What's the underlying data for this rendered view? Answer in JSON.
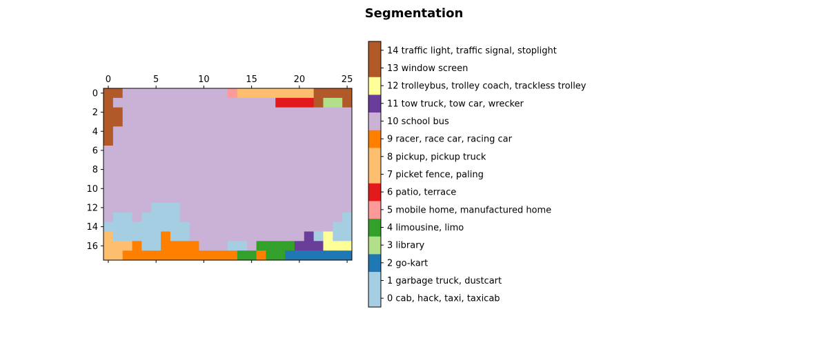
{
  "chart_data": {
    "type": "heatmap",
    "title": "Segmentation",
    "xlabel": "",
    "ylabel": "",
    "x_ticks": [
      0,
      5,
      10,
      15,
      20,
      25
    ],
    "y_ticks": [
      0,
      2,
      4,
      6,
      8,
      10,
      12,
      14,
      16
    ],
    "xlim": [
      -0.5,
      25.5
    ],
    "ylim": [
      17.5,
      -0.5
    ],
    "x_tick_position": "top",
    "grid": false,
    "legend_position": "right",
    "colorbar": {
      "ticks": [
        0,
        1,
        2,
        3,
        4,
        5,
        6,
        7,
        8,
        9,
        10,
        11,
        12,
        13,
        14
      ],
      "labels": [
        "0 cab, hack, taxi, taxicab",
        "1 garbage truck, dustcart",
        "2 go-kart",
        "3 library",
        "4 limousine, limo",
        "5 mobile home, manufactured home",
        "6 patio, terrace",
        "7 picket fence, paling",
        "8 pickup, pickup truck",
        "9 racer, race car, racing car",
        "10 school bus",
        "11 tow truck, tow car, wrecker",
        "12 trolleybus, trolley coach, trackless trolley",
        "13 window screen",
        "14 traffic light, traffic signal, stoplight"
      ],
      "colors": [
        "#a6cee3",
        "#a6cee3",
        "#1f78b4",
        "#b2df8a",
        "#33a02c",
        "#fb9a99",
        "#e31a1c",
        "#fdbf6f",
        "#fdbf6f",
        "#ff7f00",
        "#cab2d6",
        "#6a3d9a",
        "#ffff99",
        "#b15928",
        "#b15928"
      ]
    },
    "grid_values": [
      [
        13,
        13,
        10,
        10,
        10,
        10,
        10,
        10,
        10,
        10,
        10,
        10,
        10,
        5,
        7,
        7,
        7,
        7,
        7,
        7,
        7,
        7,
        13,
        13,
        13,
        13
      ],
      [
        13,
        10,
        10,
        10,
        10,
        10,
        10,
        10,
        10,
        10,
        10,
        10,
        10,
        10,
        10,
        10,
        10,
        10,
        6,
        6,
        6,
        6,
        13,
        3,
        3,
        13
      ],
      [
        13,
        13,
        10,
        10,
        10,
        10,
        10,
        10,
        10,
        10,
        10,
        10,
        10,
        10,
        10,
        10,
        10,
        10,
        10,
        10,
        10,
        10,
        10,
        10,
        10,
        10
      ],
      [
        13,
        13,
        10,
        10,
        10,
        10,
        10,
        10,
        10,
        10,
        10,
        10,
        10,
        10,
        10,
        10,
        10,
        10,
        10,
        10,
        10,
        10,
        10,
        10,
        10,
        10
      ],
      [
        13,
        10,
        10,
        10,
        10,
        10,
        10,
        10,
        10,
        10,
        10,
        10,
        10,
        10,
        10,
        10,
        10,
        10,
        10,
        10,
        10,
        10,
        10,
        10,
        10,
        10
      ],
      [
        13,
        10,
        10,
        10,
        10,
        10,
        10,
        10,
        10,
        10,
        10,
        10,
        10,
        10,
        10,
        10,
        10,
        10,
        10,
        10,
        10,
        10,
        10,
        10,
        10,
        10
      ],
      [
        10,
        10,
        10,
        10,
        10,
        10,
        10,
        10,
        10,
        10,
        10,
        10,
        10,
        10,
        10,
        10,
        10,
        10,
        10,
        10,
        10,
        10,
        10,
        10,
        10,
        10
      ],
      [
        10,
        10,
        10,
        10,
        10,
        10,
        10,
        10,
        10,
        10,
        10,
        10,
        10,
        10,
        10,
        10,
        10,
        10,
        10,
        10,
        10,
        10,
        10,
        10,
        10,
        10
      ],
      [
        10,
        10,
        10,
        10,
        10,
        10,
        10,
        10,
        10,
        10,
        10,
        10,
        10,
        10,
        10,
        10,
        10,
        10,
        10,
        10,
        10,
        10,
        10,
        10,
        10,
        10
      ],
      [
        10,
        10,
        10,
        10,
        10,
        10,
        10,
        10,
        10,
        10,
        10,
        10,
        10,
        10,
        10,
        10,
        10,
        10,
        10,
        10,
        10,
        10,
        10,
        10,
        10,
        10
      ],
      [
        10,
        10,
        10,
        10,
        10,
        10,
        10,
        10,
        10,
        10,
        10,
        10,
        10,
        10,
        10,
        10,
        10,
        10,
        10,
        10,
        10,
        10,
        10,
        10,
        10,
        10
      ],
      [
        10,
        10,
        10,
        10,
        10,
        10,
        10,
        10,
        10,
        10,
        10,
        10,
        10,
        10,
        10,
        10,
        10,
        10,
        10,
        10,
        10,
        10,
        10,
        10,
        10,
        10
      ],
      [
        10,
        10,
        10,
        10,
        10,
        1,
        1,
        1,
        10,
        10,
        10,
        10,
        10,
        10,
        10,
        10,
        10,
        10,
        10,
        10,
        10,
        10,
        10,
        10,
        10,
        10
      ],
      [
        10,
        1,
        1,
        10,
        1,
        1,
        1,
        1,
        10,
        10,
        10,
        10,
        10,
        10,
        10,
        10,
        10,
        10,
        10,
        10,
        10,
        10,
        10,
        10,
        10,
        1
      ],
      [
        1,
        1,
        1,
        1,
        1,
        1,
        1,
        1,
        1,
        10,
        10,
        10,
        10,
        10,
        10,
        10,
        10,
        10,
        10,
        10,
        10,
        10,
        10,
        10,
        1,
        1
      ],
      [
        7,
        1,
        1,
        1,
        1,
        1,
        9,
        1,
        1,
        10,
        10,
        10,
        10,
        10,
        10,
        10,
        10,
        10,
        10,
        10,
        10,
        11,
        1,
        12,
        1,
        1
      ],
      [
        7,
        7,
        7,
        9,
        1,
        1,
        9,
        9,
        9,
        9,
        10,
        10,
        10,
        1,
        1,
        10,
        4,
        4,
        4,
        4,
        11,
        11,
        11,
        12,
        12,
        12
      ],
      [
        7,
        7,
        9,
        9,
        9,
        9,
        9,
        9,
        9,
        9,
        9,
        9,
        9,
        9,
        4,
        4,
        9,
        4,
        4,
        2,
        2,
        2,
        2,
        2,
        2,
        2
      ]
    ]
  }
}
